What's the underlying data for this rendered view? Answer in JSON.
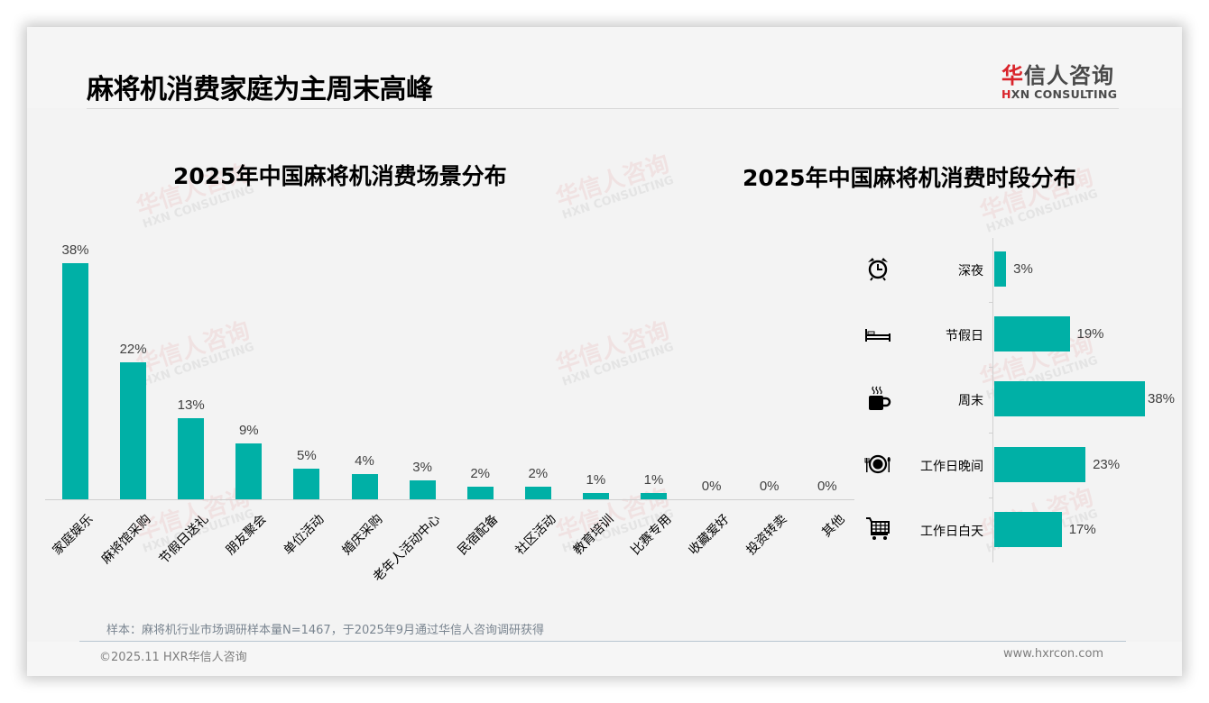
{
  "page": {
    "title": "麻将机消费家庭为主周末高峰",
    "logo": {
      "cn_accent": "华",
      "cn_rest": "信人咨询",
      "en_accent": "H",
      "en_rest": "XN CONSULTING"
    },
    "watermark": {
      "cn": "华信人咨询",
      "en": "HXN CONSULTING"
    },
    "note": "样本：麻将机行业市场调研样本量N=1467，于2025年9月通过华信人咨询调研获得",
    "copyright": "©2025.11 HXR华信人咨询",
    "website": "www.hxrcon.com",
    "accent_color": "#00b0a6"
  },
  "chart_data": [
    {
      "type": "bar",
      "title": "2025年中国麻将机消费场景分布",
      "xlabel": "",
      "ylabel": "",
      "categories": [
        "家庭娱乐",
        "麻将馆采购",
        "节假日送礼",
        "朋友聚会",
        "单位活动",
        "婚庆采购",
        "老年人活动中心",
        "民宿配备",
        "社区活动",
        "教育培训",
        "比赛专用",
        "收藏爱好",
        "投资转卖",
        "其他"
      ],
      "values": [
        38,
        22,
        13,
        9,
        5,
        4,
        3,
        2,
        2,
        1,
        1,
        0,
        0,
        0
      ],
      "labels": [
        "38%",
        "22%",
        "13%",
        "9%",
        "5%",
        "4%",
        "3%",
        "2%",
        "2%",
        "1%",
        "1%",
        "0%",
        "0%",
        "0%"
      ],
      "unit": "%",
      "ylim": [
        0,
        40
      ],
      "grid": false,
      "legend": "none",
      "label_rotation": -45
    },
    {
      "type": "bar",
      "orientation": "horizontal",
      "title": "2025年中国麻将机消费时段分布",
      "categories": [
        "深夜",
        "节假日",
        "周末",
        "工作日晚间",
        "工作日白天"
      ],
      "values": [
        3,
        19,
        38,
        23,
        17
      ],
      "labels": [
        "3%",
        "19%",
        "38%",
        "23%",
        "17%"
      ],
      "icons": [
        "alarm-clock-icon",
        "bed-icon",
        "coffee-mug-icon",
        "plate-cutlery-icon",
        "shopping-cart-icon"
      ],
      "unit": "%",
      "grid": false,
      "legend": "none"
    }
  ]
}
